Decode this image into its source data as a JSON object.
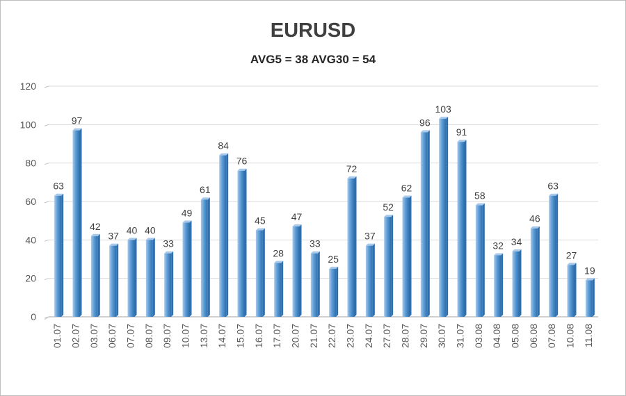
{
  "chart_data": {
    "type": "bar",
    "title": "EURUSD",
    "subtitle": "AVG5 = 38 AVG30 = 54",
    "categories": [
      "01.07",
      "02.07",
      "03.07",
      "06.07",
      "07.07",
      "08.07",
      "09.07",
      "10.07",
      "13.07",
      "14.07",
      "15.07",
      "16.07",
      "17.07",
      "20.07",
      "21.07",
      "22.07",
      "23.07",
      "24.07",
      "27.07",
      "28.07",
      "29.07",
      "30.07",
      "31.07",
      "03.08",
      "04.08",
      "05.08",
      "06.08",
      "07.08",
      "10.08",
      "11.08"
    ],
    "values": [
      63,
      97,
      42,
      37,
      40,
      40,
      33,
      49,
      61,
      84,
      76,
      45,
      28,
      47,
      33,
      25,
      72,
      37,
      52,
      62,
      96,
      103,
      91,
      58,
      32,
      34,
      46,
      63,
      27,
      19
    ],
    "ylim": [
      0,
      120
    ],
    "yticks": [
      0,
      20,
      40,
      60,
      80,
      100,
      120
    ],
    "grid": true,
    "legend": "none",
    "colors": {
      "bar": "#5b9bd5",
      "bar_light": "#a9c9ea",
      "bar_dark": "#2e6fae",
      "grid": "#d9d9d9"
    }
  }
}
